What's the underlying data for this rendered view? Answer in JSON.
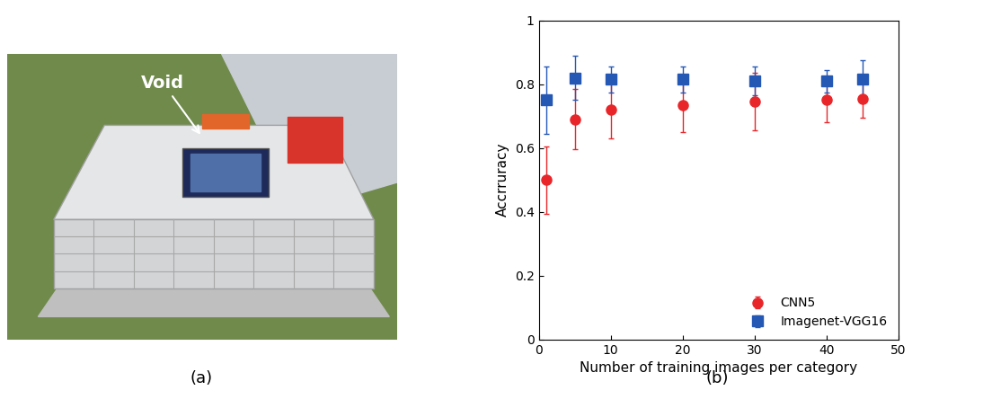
{
  "panel_labels": [
    "(a)",
    "(b)"
  ],
  "photo": {
    "annotation": "Void"
  },
  "chart_data": {
    "type": "scatter",
    "x_label": "Number of training images per category",
    "y_label": "Accrruracy",
    "x": [
      1,
      5,
      10,
      20,
      30,
      40,
      45
    ],
    "series": [
      {
        "name": "CNN5",
        "color": "#e8262a",
        "marker": "circle",
        "values": [
          0.5,
          0.69,
          0.72,
          0.735,
          0.745,
          0.75,
          0.755
        ],
        "errors": [
          0.105,
          0.095,
          0.09,
          0.085,
          0.09,
          0.07,
          0.06
        ]
      },
      {
        "name": "Imagenet-VGG16",
        "color": "#2557b5",
        "marker": "square",
        "values": [
          0.75,
          0.82,
          0.815,
          0.815,
          0.81,
          0.81,
          0.815
        ],
        "errors": [
          0.105,
          0.07,
          0.04,
          0.04,
          0.045,
          0.035,
          0.06
        ]
      }
    ],
    "xlim": [
      0,
      50
    ],
    "ylim": [
      0,
      1
    ],
    "xticks": [
      0,
      10,
      20,
      30,
      40,
      50
    ],
    "yticks": [
      0,
      0.2,
      0.4,
      0.6,
      0.8,
      1
    ],
    "legend": "lower right"
  }
}
